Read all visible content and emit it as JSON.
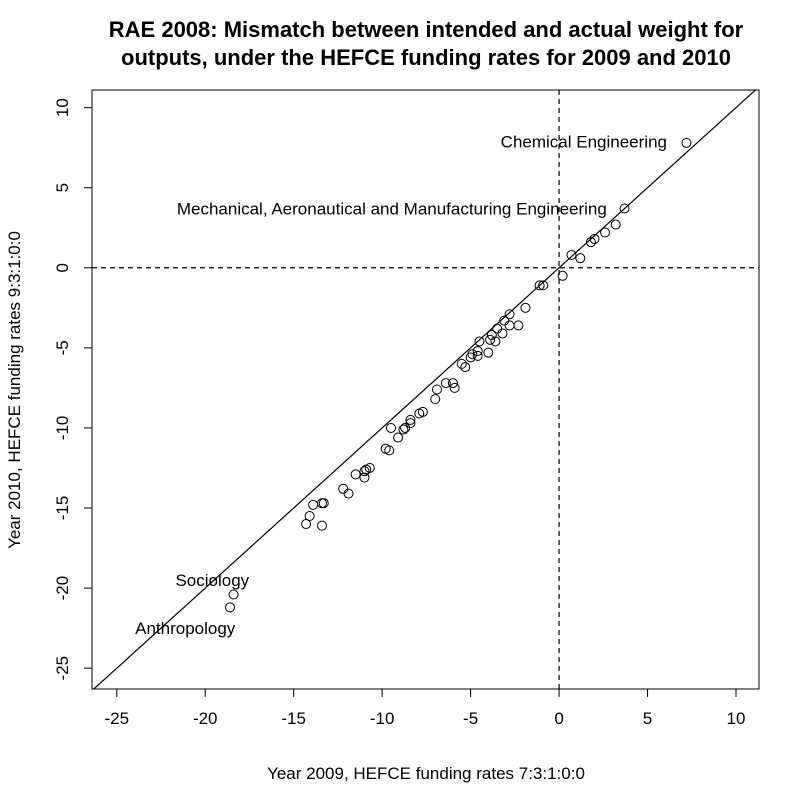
{
  "chart_data": {
    "type": "scatter",
    "title_lines": [
      "RAE 2008: Mismatch between intended and actual weight for",
      "outputs, under the HEFCE funding rates for 2009 and 2010"
    ],
    "xlabel": "Year 2009, HEFCE funding rates 7:3:1:0:0",
    "ylabel": "Year 2010, HEFCE funding rates 9:3:1:0:0",
    "xlim": [
      -26.4,
      11.3
    ],
    "ylim": [
      -26.3,
      11.1
    ],
    "xticks": [
      -25,
      -20,
      -15,
      -10,
      -5,
      0,
      5,
      10
    ],
    "yticks": [
      -25,
      -20,
      -15,
      -10,
      -5,
      0,
      5,
      10
    ],
    "xtick_labels": [
      "-25",
      "-20",
      "-15",
      "-10",
      "-5",
      "0",
      "5",
      "10"
    ],
    "ytick_labels": [
      "-25",
      "-20",
      "-15",
      "-10",
      "-5",
      "0",
      "5",
      "10"
    ],
    "reference_lines": {
      "diagonal": "y = x",
      "horizontal_dashed_y": 0,
      "vertical_dashed_x": 0
    },
    "points": [
      {
        "x": 7.2,
        "y": 7.8
      },
      {
        "x": 3.7,
        "y": 3.7
      },
      {
        "x": 3.2,
        "y": 2.7
      },
      {
        "x": 2.6,
        "y": 2.2
      },
      {
        "x": 2.0,
        "y": 1.8
      },
      {
        "x": 1.8,
        "y": 1.6
      },
      {
        "x": 1.2,
        "y": 0.6
      },
      {
        "x": 0.7,
        "y": 0.8
      },
      {
        "x": 0.2,
        "y": -0.5
      },
      {
        "x": -0.9,
        "y": -1.1
      },
      {
        "x": -1.1,
        "y": -1.1
      },
      {
        "x": -1.9,
        "y": -2.5
      },
      {
        "x": -2.3,
        "y": -3.6
      },
      {
        "x": -2.8,
        "y": -2.9
      },
      {
        "x": -2.8,
        "y": -3.6
      },
      {
        "x": -3.1,
        "y": -3.3
      },
      {
        "x": -3.2,
        "y": -4.1
      },
      {
        "x": -3.5,
        "y": -3.8
      },
      {
        "x": -3.6,
        "y": -4.6
      },
      {
        "x": -3.8,
        "y": -4.2
      },
      {
        "x": -3.9,
        "y": -4.5
      },
      {
        "x": -4.0,
        "y": -5.3
      },
      {
        "x": -4.5,
        "y": -4.6
      },
      {
        "x": -4.6,
        "y": -5.5
      },
      {
        "x": -4.6,
        "y": -5.2
      },
      {
        "x": -4.9,
        "y": -5.4
      },
      {
        "x": -5.0,
        "y": -5.6
      },
      {
        "x": -5.3,
        "y": -6.2
      },
      {
        "x": -5.5,
        "y": -6.0
      },
      {
        "x": -5.9,
        "y": -7.5
      },
      {
        "x": -6.0,
        "y": -7.2
      },
      {
        "x": -6.4,
        "y": -7.2
      },
      {
        "x": -6.9,
        "y": -7.6
      },
      {
        "x": -7.0,
        "y": -8.2
      },
      {
        "x": -7.7,
        "y": -9.0
      },
      {
        "x": -7.9,
        "y": -9.1
      },
      {
        "x": -8.4,
        "y": -9.7
      },
      {
        "x": -8.4,
        "y": -9.5
      },
      {
        "x": -8.7,
        "y": -10.0
      },
      {
        "x": -8.8,
        "y": -10.1
      },
      {
        "x": -9.1,
        "y": -10.6
      },
      {
        "x": -9.5,
        "y": -10.0
      },
      {
        "x": -9.6,
        "y": -11.4
      },
      {
        "x": -9.8,
        "y": -11.3
      },
      {
        "x": -10.7,
        "y": -12.5
      },
      {
        "x": -10.9,
        "y": -12.6
      },
      {
        "x": -11.0,
        "y": -13.1
      },
      {
        "x": -11.0,
        "y": -12.7
      },
      {
        "x": -11.5,
        "y": -12.9
      },
      {
        "x": -11.9,
        "y": -14.1
      },
      {
        "x": -12.2,
        "y": -13.8
      },
      {
        "x": -13.3,
        "y": -14.7
      },
      {
        "x": -13.4,
        "y": -14.7
      },
      {
        "x": -13.4,
        "y": -16.1
      },
      {
        "x": -13.9,
        "y": -14.8
      },
      {
        "x": -14.1,
        "y": -15.5
      },
      {
        "x": -14.3,
        "y": -16.0
      },
      {
        "x": -18.4,
        "y": -20.4
      },
      {
        "x": -18.6,
        "y": -21.2
      }
    ],
    "annotations": [
      {
        "text": "Chemical Engineering",
        "x": 6.1,
        "y": 7.9,
        "anchor": "end"
      },
      {
        "text": "Mechanical, Aeronautical and Manufacturing Engineering",
        "x": 2.7,
        "y": 3.7,
        "anchor": "end"
      },
      {
        "text": "Sociology",
        "x": -19.6,
        "y": -19.5,
        "anchor": "middle"
      },
      {
        "text": "Anthropology",
        "x": -18.3,
        "y": -22.5,
        "anchor": "end"
      }
    ]
  }
}
